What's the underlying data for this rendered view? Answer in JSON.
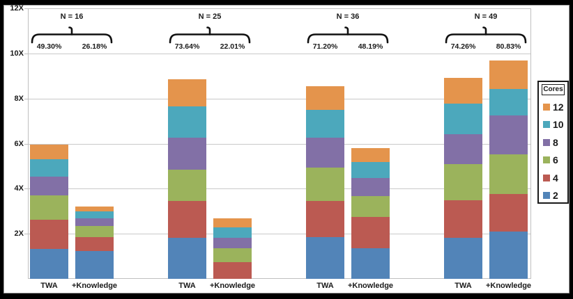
{
  "chart_data": {
    "type": "bar",
    "stacked": true,
    "title": "",
    "xlabel": "",
    "ylabel": "",
    "ylim": [
      0,
      12
    ],
    "ytick_step": 2,
    "grid": true,
    "yticks": [
      {
        "value": 12,
        "label": "12X"
      },
      {
        "value": 10,
        "label": "10X"
      },
      {
        "value": 8,
        "label": "8X"
      },
      {
        "value": 6,
        "label": "6X"
      },
      {
        "value": 4,
        "label": "4X"
      },
      {
        "value": 2,
        "label": "2X"
      }
    ],
    "legend": {
      "title": "Cores",
      "position": "right",
      "items": [
        {
          "label": "12",
          "color": "#e4944c"
        },
        {
          "label": "10",
          "color": "#4ca8bc"
        },
        {
          "label": "8",
          "color": "#8270a6"
        },
        {
          "label": "6",
          "color": "#9bb35c"
        },
        {
          "label": "4",
          "color": "#bb5a52"
        },
        {
          "label": "2",
          "color": "#5284b8"
        }
      ]
    },
    "series_bottom_to_top": [
      "2",
      "4",
      "6",
      "8",
      "10",
      "12"
    ],
    "series_colors": {
      "2": "#5284b8",
      "4": "#bb5a52",
      "6": "#9bb35c",
      "8": "#8270a6",
      "10": "#4ca8bc",
      "12": "#e4944c"
    },
    "value_note": "cumulative speedup (X) reached at each core count, bottom-to-top order 2,4,6,8,10,12",
    "groups": [
      {
        "label": "N = 16",
        "bars": [
          {
            "category": "TWA",
            "annotation": "49.30%",
            "cumulative": [
              1.34,
              2.62,
              3.7,
              4.55,
              5.3,
              5.95
            ]
          },
          {
            "category": "+Knowledge",
            "annotation": "26.18%",
            "cumulative": [
              1.23,
              1.85,
              2.35,
              2.68,
              3.0,
              3.22
            ]
          }
        ]
      },
      {
        "label": "N = 25",
        "bars": [
          {
            "category": "TWA",
            "annotation": "73.64%",
            "cumulative": [
              1.82,
              3.45,
              4.84,
              6.27,
              7.65,
              8.86
            ]
          },
          {
            "category": "+Knowledge",
            "annotation": "22.01%",
            "cumulative": [
              0.0,
              0.74,
              1.36,
              1.82,
              2.28,
              2.68
            ]
          }
        ]
      },
      {
        "label": "N = 36",
        "bars": [
          {
            "category": "TWA",
            "annotation": "71.20%",
            "cumulative": [
              1.85,
              3.45,
              4.94,
              6.27,
              7.5,
              8.55
            ]
          },
          {
            "category": "+Knowledge",
            "annotation": "48.19%",
            "cumulative": [
              1.36,
              2.74,
              3.68,
              4.48,
              5.19,
              5.8
            ]
          }
        ]
      },
      {
        "label": "N = 49",
        "bars": [
          {
            "category": "TWA",
            "annotation": "74.26%",
            "cumulative": [
              1.83,
              3.48,
              5.09,
              6.43,
              7.77,
              8.92
            ]
          },
          {
            "category": "+Knowledge",
            "annotation": "80.83%",
            "cumulative": [
              2.1,
              3.76,
              5.53,
              7.25,
              8.43,
              9.7
            ]
          }
        ]
      }
    ]
  }
}
